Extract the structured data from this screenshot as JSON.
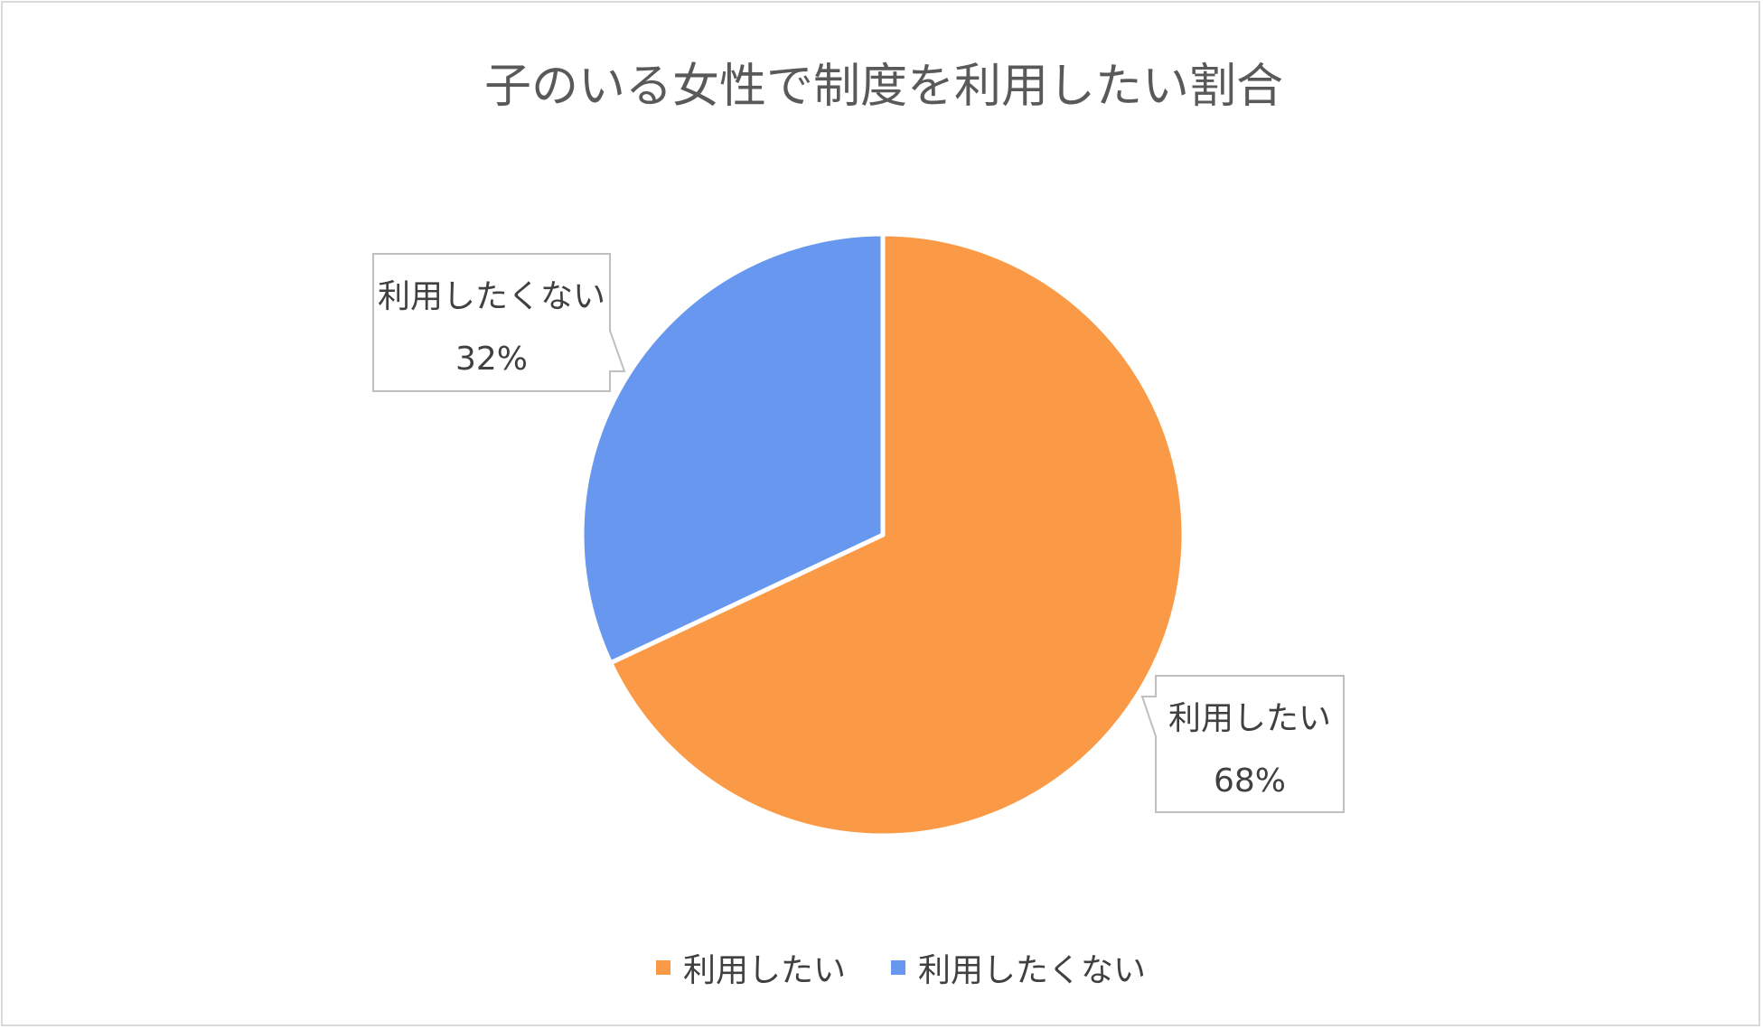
{
  "chart_data": {
    "type": "pie",
    "title": "子のいる女性で制度を利用したい割合",
    "categories": [
      "利用したい",
      "利用したくない"
    ],
    "values": [
      68,
      32
    ],
    "data_labels": [
      "68%",
      "32%"
    ],
    "colors": [
      "#fb9a46",
      "#6797ee"
    ],
    "start_angle_deg": 0,
    "direction": "clockwise",
    "legend_position": "bottom"
  }
}
